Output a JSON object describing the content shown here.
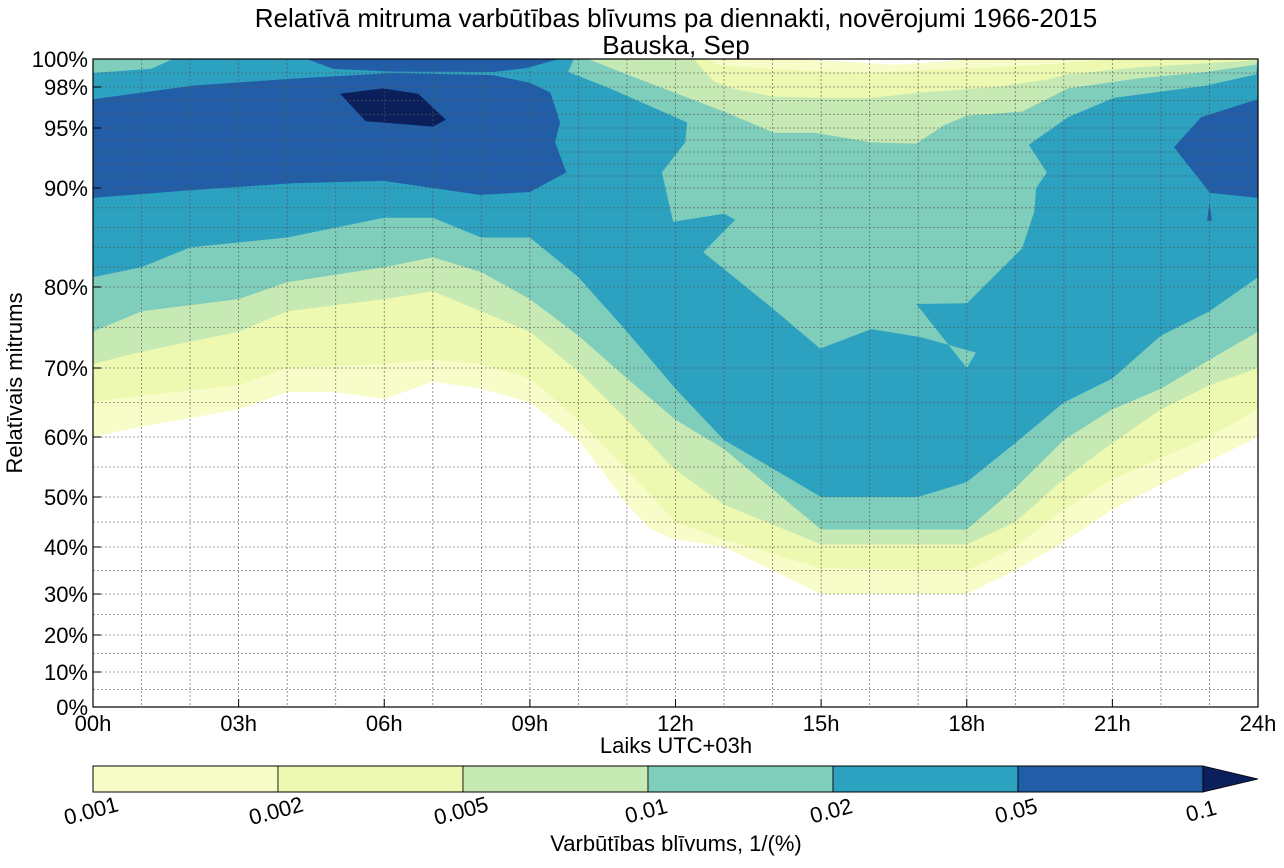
{
  "chart_data": {
    "type": "contour",
    "title": "Relatīvā mitruma varbūtības blīvums pa diennakti, novērojumi 1966-2015",
    "subtitle": "Bauska, Sep",
    "xlabel": "Laiks UTC+03h",
    "ylabel": "Relatīvais mitrums",
    "xlim": [
      0,
      24
    ],
    "ylim": [
      0,
      100
    ],
    "grid": true,
    "x_ticks": [
      {
        "value": 0,
        "label": "00h"
      },
      {
        "value": 3,
        "label": "03h"
      },
      {
        "value": 6,
        "label": "06h"
      },
      {
        "value": 9,
        "label": "09h"
      },
      {
        "value": 12,
        "label": "12h"
      },
      {
        "value": 15,
        "label": "15h"
      },
      {
        "value": 18,
        "label": "18h"
      },
      {
        "value": 21,
        "label": "21h"
      },
      {
        "value": 24,
        "label": "24h"
      }
    ],
    "y_ticks": [
      {
        "value": 0,
        "label": "0%"
      },
      {
        "value": 10,
        "label": "10%"
      },
      {
        "value": 20,
        "label": "20%"
      },
      {
        "value": 30,
        "label": "30%"
      },
      {
        "value": 40,
        "label": "40%"
      },
      {
        "value": 50,
        "label": "50%"
      },
      {
        "value": 60,
        "label": "60%"
      },
      {
        "value": 70,
        "label": "70%"
      },
      {
        "value": 80,
        "label": "80%"
      },
      {
        "value": 90,
        "label": "90%"
      },
      {
        "value": 95,
        "label": "95%"
      },
      {
        "value": 98,
        "label": "98%"
      },
      {
        "value": 100,
        "label": "100%"
      }
    ],
    "colorbar": {
      "label": "Varbūtības blīvums, 1/(%)",
      "levels": [
        "0.001",
        "0.002",
        "0.005",
        "0.01",
        "0.02",
        "0.05",
        "0.1"
      ],
      "colors": [
        "#f8fcc9",
        "#edf8b1",
        "#c7e9b4",
        "#7fcdbb",
        "#2ca1c0",
        "#225ea8",
        "#0b1f5a"
      ],
      "extend": "max"
    },
    "regions": [
      {
        "level": 0,
        "points": [
          [
            0,
            60
          ],
          [
            1,
            61.5
          ],
          [
            3,
            64
          ],
          [
            4,
            66.5
          ],
          [
            5,
            66.5
          ],
          [
            6,
            65.5
          ],
          [
            7,
            68
          ],
          [
            8,
            67
          ],
          [
            9,
            65
          ],
          [
            10,
            59.5
          ],
          [
            11,
            48.5
          ],
          [
            11.5,
            43.5
          ],
          [
            12,
            41.5
          ],
          [
            13,
            40
          ],
          [
            15,
            30
          ],
          [
            18,
            30
          ],
          [
            19,
            35
          ],
          [
            20,
            41
          ],
          [
            21,
            47.5
          ],
          [
            22,
            52
          ],
          [
            23,
            56
          ],
          [
            24,
            60
          ],
          [
            24,
            100
          ],
          [
            0,
            100
          ]
        ]
      },
      {
        "level": 1,
        "points": [
          [
            0,
            65
          ],
          [
            1,
            66
          ],
          [
            3,
            67.5
          ],
          [
            4,
            70
          ],
          [
            6,
            70.5
          ],
          [
            7,
            71
          ],
          [
            8,
            70.5
          ],
          [
            9,
            68.5
          ],
          [
            10,
            62.5
          ],
          [
            11,
            54.5
          ],
          [
            12,
            45
          ],
          [
            13,
            41.5
          ],
          [
            15,
            35.5
          ],
          [
            18,
            35
          ],
          [
            19,
            40
          ],
          [
            20,
            47.5
          ],
          [
            21,
            53
          ],
          [
            22,
            56.5
          ],
          [
            23,
            60
          ],
          [
            24,
            64
          ],
          [
            24,
            100
          ],
          [
            0,
            100
          ]
        ]
      },
      {
        "level": 2,
        "points": [
          [
            0,
            70.5
          ],
          [
            1,
            72
          ],
          [
            3,
            74.5
          ],
          [
            4,
            77
          ],
          [
            6,
            78.5
          ],
          [
            7,
            79.5
          ],
          [
            8,
            77
          ],
          [
            9,
            74.5
          ],
          [
            10,
            69.5
          ],
          [
            11,
            62.5
          ],
          [
            12,
            54.5
          ],
          [
            13,
            48.5
          ],
          [
            15,
            40.5
          ],
          [
            18,
            40.5
          ],
          [
            19,
            45
          ],
          [
            20,
            53
          ],
          [
            21,
            59
          ],
          [
            22,
            64
          ],
          [
            23,
            67.5
          ],
          [
            24,
            70
          ],
          [
            24,
            100
          ],
          [
            0,
            100
          ]
        ]
      },
      {
        "level": 3,
        "points": [
          [
            0,
            74.5
          ],
          [
            1,
            77
          ],
          [
            3,
            78.5
          ],
          [
            4,
            80.5
          ],
          [
            6,
            82
          ],
          [
            7,
            83
          ],
          [
            8,
            81.5
          ],
          [
            9,
            78.5
          ],
          [
            10,
            74
          ],
          [
            11,
            68.5
          ],
          [
            12,
            62.5
          ],
          [
            13,
            58
          ],
          [
            15,
            43.5
          ],
          [
            18,
            43.5
          ],
          [
            19,
            51.5
          ],
          [
            20,
            59.5
          ],
          [
            21,
            64
          ],
          [
            22,
            67
          ],
          [
            23,
            71
          ],
          [
            24,
            74.5
          ],
          [
            24,
            100
          ],
          [
            0,
            100
          ]
        ]
      },
      {
        "level": 4,
        "points": [
          [
            0,
            81
          ],
          [
            1,
            82
          ],
          [
            2,
            84
          ],
          [
            4,
            85
          ],
          [
            6,
            87
          ],
          [
            7,
            87
          ],
          [
            8,
            85
          ],
          [
            9,
            85
          ],
          [
            10,
            81
          ],
          [
            11,
            74.5
          ],
          [
            12,
            67
          ],
          [
            13,
            59.5
          ],
          [
            15,
            50
          ],
          [
            17,
            50
          ],
          [
            18,
            52.5
          ],
          [
            19,
            59
          ],
          [
            20,
            65
          ],
          [
            21,
            68.5
          ],
          [
            22,
            74
          ],
          [
            23,
            77
          ],
          [
            24,
            81
          ],
          [
            24,
            100
          ],
          [
            0,
            100
          ]
        ]
      },
      {
        "level": 5,
        "points": [
          [
            0,
            97.1
          ],
          [
            2.06,
            98.1
          ],
          [
            4.12,
            98.6
          ],
          [
            6.18,
            99.0
          ],
          [
            8.24,
            98.85
          ],
          [
            9.0,
            98.3
          ],
          [
            9.42,
            97.6
          ],
          [
            9.62,
            95.4
          ],
          [
            9.52,
            93.8
          ],
          [
            9.75,
            91.3
          ],
          [
            9.0,
            89.6
          ],
          [
            7.97,
            89.3
          ],
          [
            5.97,
            90.6
          ],
          [
            4.12,
            90.4
          ],
          [
            2.06,
            89.8
          ],
          [
            0,
            89
          ]
        ]
      },
      {
        "level": 5,
        "points": [
          [
            4.4,
            100
          ],
          [
            9.6,
            100
          ],
          [
            8.92,
            99.35
          ],
          [
            8.24,
            99.07
          ],
          [
            6.18,
            99.1
          ],
          [
            4.94,
            99.3
          ]
        ]
      },
      {
        "level": 5,
        "points": [
          [
            22.27,
            93.4
          ],
          [
            22.83,
            95.8
          ],
          [
            24,
            97.1
          ],
          [
            24,
            89
          ],
          [
            23.01,
            89.5
          ]
        ]
      },
      {
        "level": 5,
        "points": [
          [
            22.95,
            86.7
          ],
          [
            23.05,
            86.7
          ],
          [
            23.0,
            88.5
          ]
        ]
      },
      {
        "level": 6,
        "points": [
          [
            5.09,
            97.5
          ],
          [
            5.97,
            97.9
          ],
          [
            6.7,
            97.5
          ],
          [
            7.27,
            95.6
          ],
          [
            7.0,
            95.1
          ],
          [
            5.62,
            95.5
          ]
        ]
      },
      {
        "level": 3,
        "points": [
          [
            0,
            100
          ],
          [
            0,
            99.0
          ],
          [
            1.2,
            99.3
          ],
          [
            1.65,
            100
          ]
        ]
      },
      {
        "level": 3,
        "points": [
          [
            9.79,
            99.07
          ],
          [
            10.63,
            97.93
          ],
          [
            12.05,
            95.7
          ],
          [
            12.24,
            95.4
          ],
          [
            12.2,
            93.8
          ],
          [
            11.72,
            91.3
          ],
          [
            11.95,
            86.6
          ],
          [
            13.0,
            87.4
          ],
          [
            13.23,
            86.8
          ],
          [
            12.57,
            83.5
          ],
          [
            13.95,
            77.6
          ],
          [
            14.98,
            72.4
          ],
          [
            16.03,
            74.8
          ],
          [
            17.06,
            73.8
          ],
          [
            18.19,
            71.9
          ],
          [
            18.0,
            70
          ],
          [
            16.96,
            77.9
          ],
          [
            18.0,
            78.0
          ],
          [
            19.14,
            83.9
          ],
          [
            19.39,
            87.6
          ],
          [
            19.43,
            90
          ],
          [
            19.65,
            91.3
          ],
          [
            19.28,
            93.6
          ],
          [
            20.09,
            95.8
          ],
          [
            21.03,
            97.2
          ],
          [
            22.93,
            98.1
          ],
          [
            23.96,
            98.9
          ],
          [
            24,
            100
          ],
          [
            9.9,
            100
          ]
        ]
      },
      {
        "level": 2,
        "points": [
          [
            10.92,
            99.0
          ],
          [
            13.0,
            96.2
          ],
          [
            14.03,
            94.6
          ],
          [
            14.87,
            94.6
          ],
          [
            16.03,
            93.8
          ],
          [
            16.96,
            93.7
          ],
          [
            17.53,
            95.2
          ],
          [
            18.0,
            95.9
          ],
          [
            19.14,
            96.2
          ],
          [
            20.09,
            97.9
          ],
          [
            21.5,
            98.6
          ],
          [
            22.93,
            99.07
          ],
          [
            23.96,
            99.6
          ],
          [
            24,
            100
          ],
          [
            10.2,
            100
          ]
        ]
      },
      {
        "level": 1,
        "points": [
          [
            12.42,
            99.8
          ],
          [
            12.79,
            98.4
          ],
          [
            13.27,
            97.8
          ],
          [
            14.03,
            97.3
          ],
          [
            15.08,
            97.2
          ],
          [
            16.03,
            97.2
          ],
          [
            17.06,
            97.6
          ],
          [
            18.66,
            98.03
          ],
          [
            19.61,
            98.5
          ],
          [
            20.09,
            98.9
          ],
          [
            21.5,
            99.4
          ],
          [
            22.93,
            99.7
          ],
          [
            23.96,
            99.9
          ],
          [
            24,
            100
          ],
          [
            12.4,
            100
          ]
        ]
      },
      {
        "level": 0,
        "points": [
          [
            12.6,
            100
          ],
          [
            13,
            99.5
          ],
          [
            14.5,
            99.2
          ],
          [
            16,
            99.0
          ],
          [
            17,
            99.2
          ],
          [
            18.5,
            99.4
          ],
          [
            20,
            99.7
          ],
          [
            21,
            100
          ]
        ]
      },
      {
        "level": -1,
        "points": [
          [
            14.5,
            100
          ],
          [
            15.5,
            99.8
          ],
          [
            16.5,
            99.6
          ],
          [
            17.5,
            99.8
          ],
          [
            18,
            100
          ]
        ]
      }
    ]
  }
}
